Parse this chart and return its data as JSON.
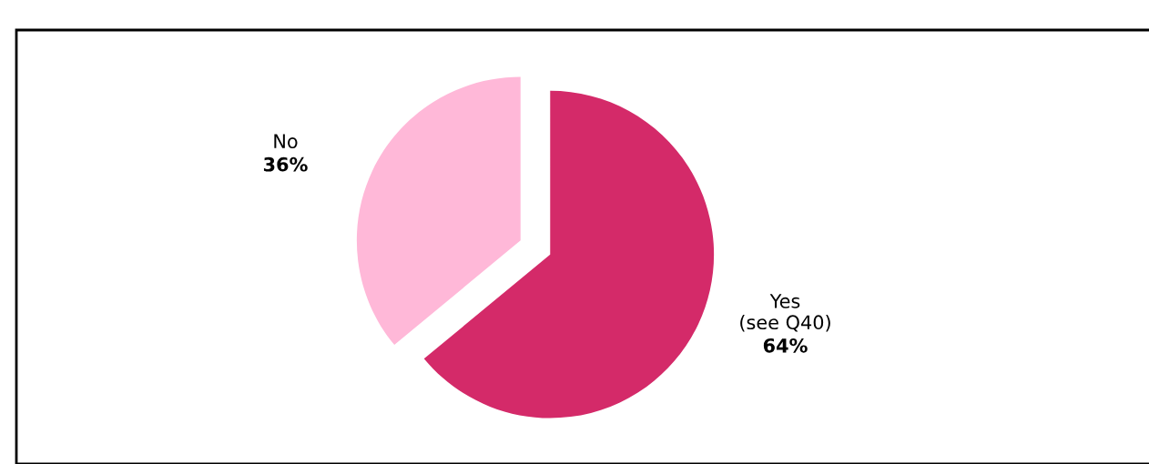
{
  "chart_data": {
    "type": "pie",
    "categories": [
      "Yes\n(see Q40)",
      "No"
    ],
    "values": [
      64,
      36
    ],
    "colors": [
      "#d42a69",
      "#ffb8d8"
    ],
    "value_labels": [
      "64%",
      "36%"
    ]
  }
}
